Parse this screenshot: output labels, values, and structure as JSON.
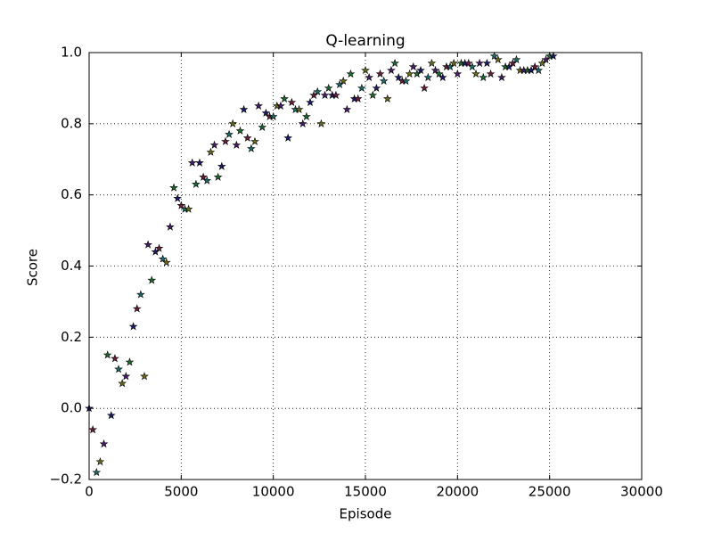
{
  "chart_data": {
    "type": "scatter",
    "title": "Q-learning",
    "x_label": "Episode",
    "y_label": "Score",
    "x": [
      0,
      200,
      400,
      600,
      800,
      1000,
      1200,
      1400,
      1600,
      1800,
      2000,
      2200,
      2400,
      2600,
      2800,
      3000,
      3200,
      3400,
      3600,
      3800,
      4000,
      4200,
      4400,
      4600,
      4800,
      5000,
      5200,
      5400,
      5600,
      5800,
      6000,
      6200,
      6400,
      6600,
      6800,
      7000,
      7200,
      7400,
      7600,
      7800,
      8000,
      8200,
      8400,
      8600,
      8800,
      9000,
      9200,
      9400,
      9600,
      9800,
      10000,
      10200,
      10400,
      10600,
      10800,
      11000,
      11200,
      11400,
      11600,
      11800,
      12000,
      12200,
      12400,
      12600,
      12800,
      13000,
      13200,
      13400,
      13600,
      13800,
      14000,
      14200,
      14400,
      14600,
      14800,
      15000,
      15200,
      15400,
      15600,
      15800,
      16000,
      16200,
      16400,
      16600,
      16800,
      17000,
      17200,
      17400,
      17600,
      17800,
      18000,
      18200,
      18400,
      18600,
      18800,
      19000,
      19200,
      19400,
      19600,
      19800,
      20000,
      20200,
      20400,
      20600,
      20800,
      21000,
      21200,
      21400,
      21600,
      21800,
      22000,
      22200,
      22400,
      22600,
      22800,
      23000,
      23200,
      23400,
      23600,
      23800,
      24000,
      24200,
      24400,
      24600,
      24800,
      25000,
      25200
    ],
    "values": [
      0.0,
      -0.06,
      -0.18,
      -0.15,
      -0.1,
      0.15,
      -0.02,
      0.14,
      0.11,
      0.07,
      0.09,
      0.13,
      0.23,
      0.28,
      0.32,
      0.09,
      0.46,
      0.36,
      0.44,
      0.45,
      0.42,
      0.41,
      0.51,
      0.62,
      0.59,
      0.57,
      0.56,
      0.56,
      0.69,
      0.63,
      0.69,
      0.65,
      0.64,
      0.72,
      0.74,
      0.65,
      0.68,
      0.75,
      0.77,
      0.8,
      0.74,
      0.78,
      0.84,
      0.76,
      0.73,
      0.75,
      0.85,
      0.79,
      0.83,
      0.82,
      0.82,
      0.85,
      0.85,
      0.87,
      0.76,
      0.86,
      0.84,
      0.84,
      0.8,
      0.82,
      0.86,
      0.88,
      0.89,
      0.8,
      0.88,
      0.9,
      0.88,
      0.88,
      0.91,
      0.92,
      0.84,
      0.94,
      0.87,
      0.87,
      0.9,
      0.95,
      0.93,
      0.88,
      0.9,
      0.94,
      0.92,
      0.87,
      0.95,
      0.97,
      0.93,
      0.92,
      0.92,
      0.94,
      0.96,
      0.94,
      0.95,
      0.9,
      0.93,
      0.97,
      0.95,
      0.94,
      0.93,
      0.96,
      0.96,
      0.97,
      0.94,
      0.97,
      0.97,
      0.97,
      0.96,
      0.94,
      0.97,
      0.93,
      0.97,
      0.94,
      0.99,
      0.98,
      0.93,
      0.96,
      0.96,
      0.97,
      0.98,
      0.95,
      0.95,
      0.95,
      0.95,
      0.96,
      0.95,
      0.97,
      0.98,
      0.99,
      0.99
    ],
    "marker_colors": [
      "#1c1c6b",
      "#6b1c3a",
      "#1c6b6b",
      "#6b6b1c",
      "#4a1c6b",
      "#1c6b2e"
    ],
    "xlim": [
      0,
      30000
    ],
    "xticks": [
      0,
      5000,
      10000,
      15000,
      20000,
      25000,
      30000
    ],
    "ylim": [
      -0.2,
      1.0
    ],
    "yticks": [
      {
        "value": -0.2,
        "label": "−0.2"
      },
      {
        "value": 0,
        "label": "0.0"
      },
      0.2,
      0.4,
      0.6,
      0.8,
      {
        "value": 1.0,
        "label": "1.0"
      }
    ],
    "grid": true
  }
}
